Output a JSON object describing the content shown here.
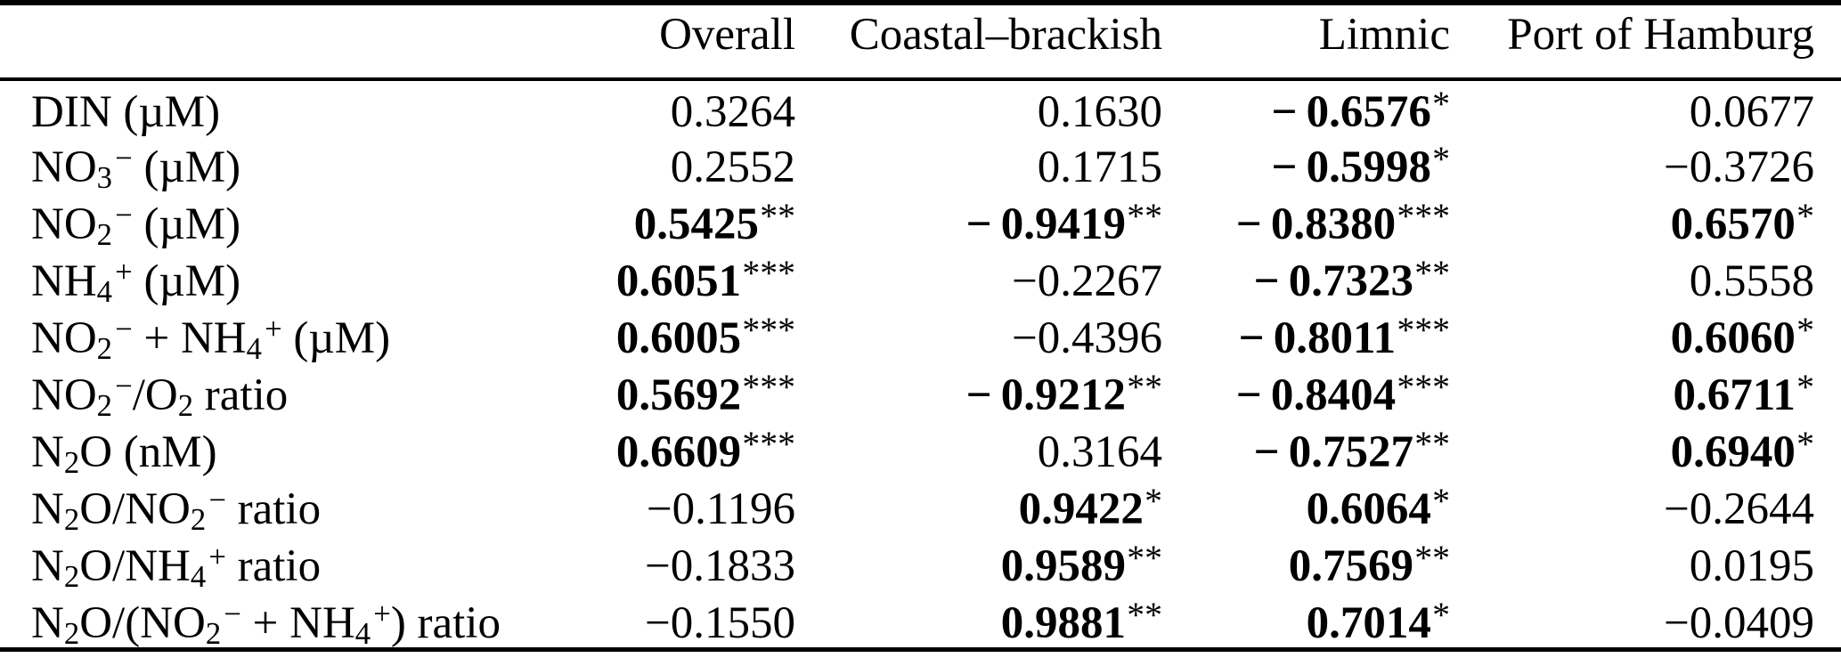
{
  "colors": {
    "background": "#ffffff",
    "text": "#000000",
    "rule": "#000000"
  },
  "table": {
    "header": {
      "row_label": "",
      "columns": [
        "Overall",
        "Coastal–brackish",
        "Limnic",
        "Port of Hamburg"
      ]
    },
    "rows": [
      {
        "label": [
          {
            "t": "DIN (µM)"
          }
        ],
        "cells": [
          {
            "value": "0.3264",
            "stars": "",
            "bold": false
          },
          {
            "value": "0.1630",
            "stars": "",
            "bold": false
          },
          {
            "value": "−0.6576",
            "stars": "*",
            "bold": true
          },
          {
            "value": "0.0677",
            "stars": "",
            "bold": false
          }
        ]
      },
      {
        "label": [
          {
            "t": "NO"
          },
          {
            "t": "3",
            "s": "sub"
          },
          {
            "t": "−",
            "s": "sup"
          },
          {
            "t": " (µM)"
          }
        ],
        "cells": [
          {
            "value": "0.2552",
            "stars": "",
            "bold": false
          },
          {
            "value": "0.1715",
            "stars": "",
            "bold": false
          },
          {
            "value": "−0.5998",
            "stars": "*",
            "bold": true
          },
          {
            "value": "−0.3726",
            "stars": "",
            "bold": false
          }
        ]
      },
      {
        "label": [
          {
            "t": "NO"
          },
          {
            "t": "2",
            "s": "sub"
          },
          {
            "t": "−",
            "s": "sup"
          },
          {
            "t": " (µM)"
          }
        ],
        "cells": [
          {
            "value": "0.5425",
            "stars": "**",
            "bold": true
          },
          {
            "value": "−0.9419",
            "stars": "**",
            "bold": true
          },
          {
            "value": "−0.8380",
            "stars": "***",
            "bold": true
          },
          {
            "value": "0.6570",
            "stars": "*",
            "bold": true
          }
        ]
      },
      {
        "label": [
          {
            "t": "NH"
          },
          {
            "t": "4",
            "s": "sub"
          },
          {
            "t": "+",
            "s": "sup"
          },
          {
            "t": " (µM)"
          }
        ],
        "cells": [
          {
            "value": "0.6051",
            "stars": "***",
            "bold": true
          },
          {
            "value": "−0.2267",
            "stars": "",
            "bold": false
          },
          {
            "value": "−0.7323",
            "stars": "**",
            "bold": true
          },
          {
            "value": "0.5558",
            "stars": "",
            "bold": false
          }
        ]
      },
      {
        "label": [
          {
            "t": "NO"
          },
          {
            "t": "2",
            "s": "sub"
          },
          {
            "t": "−",
            "s": "sup"
          },
          {
            "t": " + NH"
          },
          {
            "t": "4",
            "s": "sub"
          },
          {
            "t": "+",
            "s": "sup"
          },
          {
            "t": " (µM)"
          }
        ],
        "cells": [
          {
            "value": "0.6005",
            "stars": "***",
            "bold": true
          },
          {
            "value": "−0.4396",
            "stars": "",
            "bold": false
          },
          {
            "value": "−0.8011",
            "stars": "***",
            "bold": true
          },
          {
            "value": "0.6060",
            "stars": "*",
            "bold": true
          }
        ]
      },
      {
        "label": [
          {
            "t": "NO"
          },
          {
            "t": "2",
            "s": "sub"
          },
          {
            "t": "−",
            "s": "sup"
          },
          {
            "t": "/O"
          },
          {
            "t": "2",
            "s": "sub"
          },
          {
            "t": " ratio"
          }
        ],
        "cells": [
          {
            "value": "0.5692",
            "stars": "***",
            "bold": true
          },
          {
            "value": "−0.9212",
            "stars": "**",
            "bold": true
          },
          {
            "value": "−0.8404",
            "stars": "***",
            "bold": true
          },
          {
            "value": "0.6711",
            "stars": "*",
            "bold": true
          }
        ]
      },
      {
        "label": [
          {
            "t": "N"
          },
          {
            "t": "2",
            "s": "sub"
          },
          {
            "t": "O (nM)"
          }
        ],
        "cells": [
          {
            "value": "0.6609",
            "stars": "***",
            "bold": true
          },
          {
            "value": "0.3164",
            "stars": "",
            "bold": false
          },
          {
            "value": "−0.7527",
            "stars": "**",
            "bold": true
          },
          {
            "value": "0.6940",
            "stars": "*",
            "bold": true
          }
        ]
      },
      {
        "label": [
          {
            "t": "N"
          },
          {
            "t": "2",
            "s": "sub"
          },
          {
            "t": "O/NO"
          },
          {
            "t": "2",
            "s": "sub"
          },
          {
            "t": "−",
            "s": "sup"
          },
          {
            "t": " ratio"
          }
        ],
        "cells": [
          {
            "value": "−0.1196",
            "stars": "",
            "bold": false
          },
          {
            "value": "0.9422",
            "stars": "*",
            "bold": true
          },
          {
            "value": "0.6064",
            "stars": "*",
            "bold": true
          },
          {
            "value": "−0.2644",
            "stars": "",
            "bold": false
          }
        ]
      },
      {
        "label": [
          {
            "t": "N"
          },
          {
            "t": "2",
            "s": "sub"
          },
          {
            "t": "O/NH"
          },
          {
            "t": "4",
            "s": "sub"
          },
          {
            "t": "+",
            "s": "sup"
          },
          {
            "t": " ratio"
          }
        ],
        "cells": [
          {
            "value": "−0.1833",
            "stars": "",
            "bold": false
          },
          {
            "value": "0.9589",
            "stars": "**",
            "bold": true
          },
          {
            "value": "0.7569",
            "stars": "**",
            "bold": true
          },
          {
            "value": "0.0195",
            "stars": "",
            "bold": false
          }
        ]
      },
      {
        "label": [
          {
            "t": "N"
          },
          {
            "t": "2",
            "s": "sub"
          },
          {
            "t": "O/(NO"
          },
          {
            "t": "2",
            "s": "sub"
          },
          {
            "t": "−",
            "s": "sup"
          },
          {
            "t": " + NH"
          },
          {
            "t": "4",
            "s": "sub"
          },
          {
            "t": "+",
            "s": "sup"
          },
          {
            "t": ") ratio"
          }
        ],
        "cells": [
          {
            "value": "−0.1550",
            "stars": "",
            "bold": false
          },
          {
            "value": "0.9881",
            "stars": "**",
            "bold": true
          },
          {
            "value": "0.7014",
            "stars": "*",
            "bold": true
          },
          {
            "value": "−0.0409",
            "stars": "",
            "bold": false
          }
        ]
      }
    ]
  }
}
